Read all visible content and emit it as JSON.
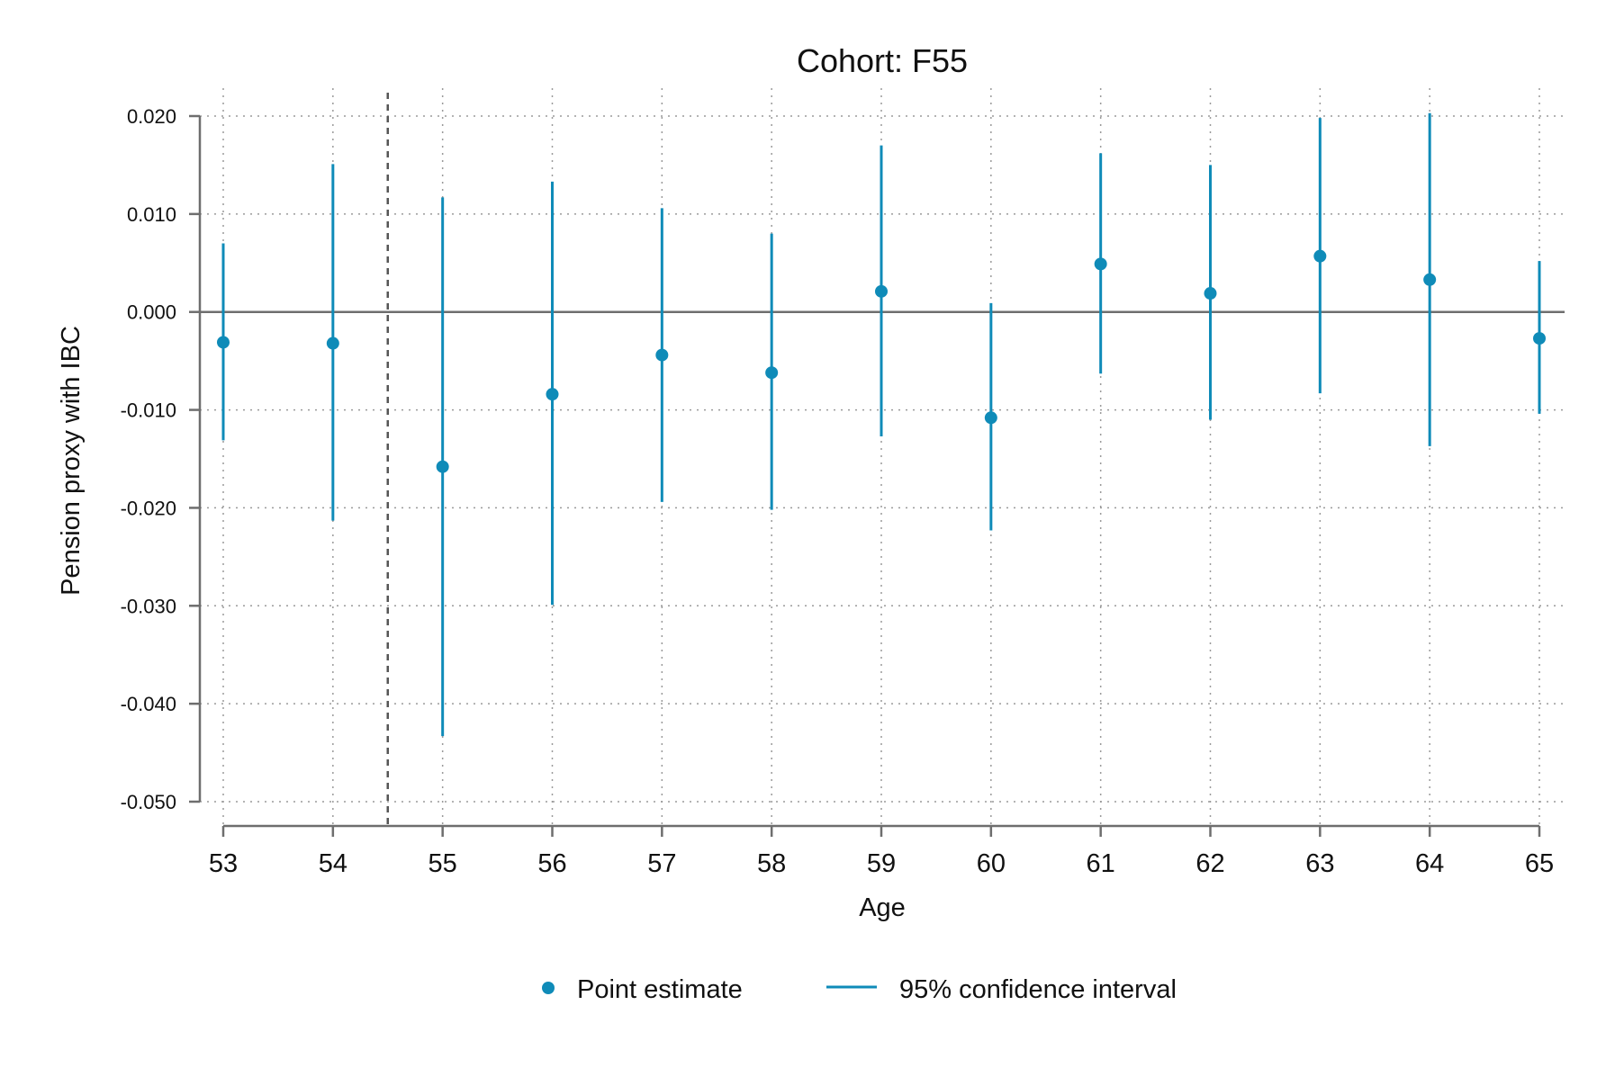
{
  "chart_data": {
    "type": "scatter",
    "title": "Cohort: F55",
    "xlabel": "Age",
    "ylabel": "Pension proxy with IBC",
    "x": [
      53,
      54,
      55,
      56,
      57,
      58,
      59,
      60,
      61,
      62,
      63,
      64,
      65
    ],
    "xticks": [
      "53",
      "54",
      "55",
      "56",
      "57",
      "58",
      "59",
      "60",
      "61",
      "62",
      "63",
      "64",
      "65"
    ],
    "yticks": [
      0.02,
      0.01,
      0.0,
      -0.01,
      -0.02,
      -0.03,
      -0.04,
      -0.05
    ],
    "ytick_labels": [
      "0.020",
      "0.010",
      "0.000",
      "-0.010",
      "-0.020",
      "-0.030",
      "-0.040",
      "-0.050"
    ],
    "ylim": [
      -0.05,
      0.02
    ],
    "xlim": [
      53,
      65
    ],
    "grid": true,
    "reference_line_y": 0.0,
    "reference_line_x": 54.5,
    "series": [
      {
        "name": "Point estimate",
        "values": [
          -0.0031,
          -0.0032,
          -0.0158,
          -0.0084,
          -0.0044,
          -0.0062,
          0.0021,
          -0.0108,
          0.0049,
          0.0019,
          0.0057,
          0.0033,
          -0.0027
        ]
      },
      {
        "name": "95% confidence interval",
        "lower": [
          -0.0131,
          -0.0213,
          -0.0433,
          -0.0299,
          -0.0194,
          -0.0202,
          -0.0127,
          -0.0223,
          -0.0063,
          -0.011,
          -0.0083,
          -0.0137,
          -0.0104
        ],
        "upper": [
          0.007,
          0.0151,
          0.0117,
          0.0133,
          0.0106,
          0.008,
          0.017,
          0.0009,
          0.0162,
          0.015,
          0.0198,
          0.0203,
          0.0052
        ]
      }
    ],
    "colors": {
      "series": "#0f8bb8",
      "axis": "#6e6e6e",
      "grid": "#9a9a9a"
    },
    "legend_position": "bottom"
  }
}
